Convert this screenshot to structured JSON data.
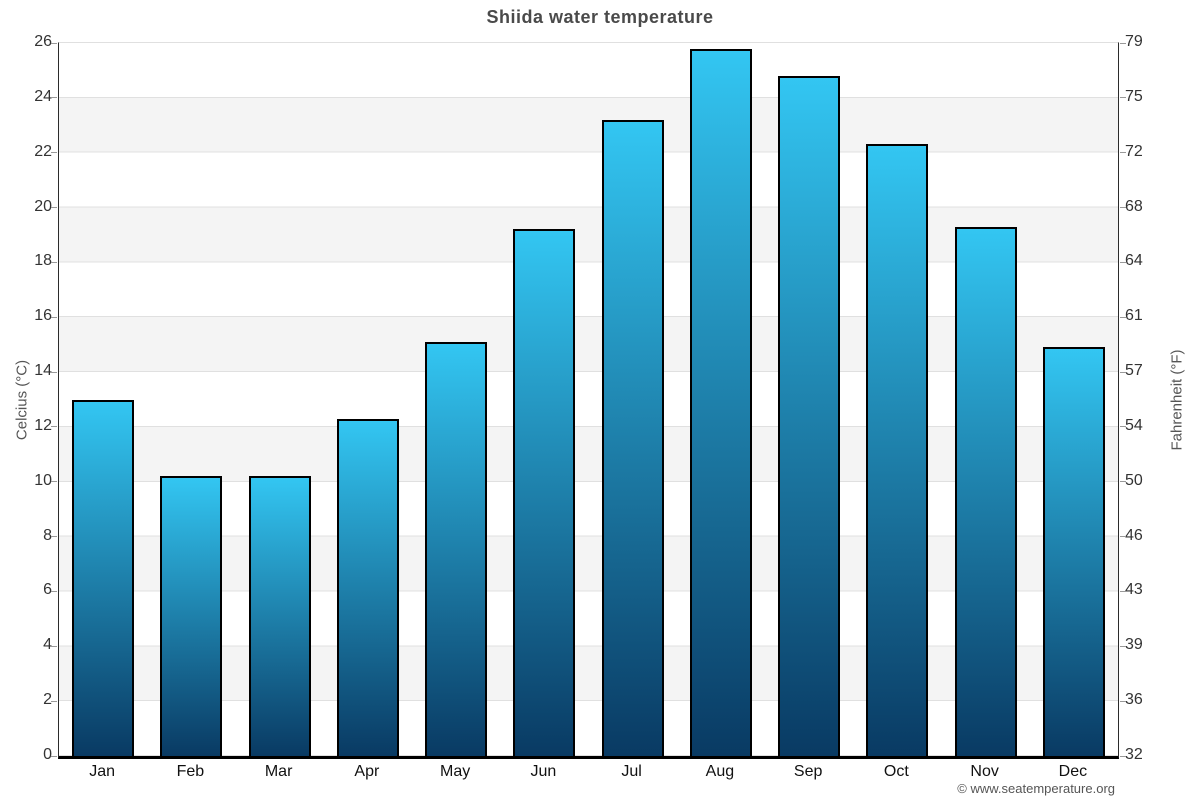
{
  "title": "Shiida water temperature",
  "footer": "© www.seatemperature.org",
  "axes": {
    "left_label": "Celcius (°C)",
    "right_label": "Fahrenheit (°F)",
    "celsius_ticks": [
      0,
      2,
      4,
      6,
      8,
      10,
      12,
      14,
      16,
      18,
      20,
      22,
      24,
      26
    ],
    "fahrenheit_ticks": [
      32,
      36,
      39,
      43,
      46,
      50,
      54,
      57,
      61,
      64,
      68,
      72,
      75,
      79
    ]
  },
  "chart_data": {
    "type": "bar",
    "title": "Shiida water temperature",
    "categories": [
      "Jan",
      "Feb",
      "Mar",
      "Apr",
      "May",
      "Jun",
      "Jul",
      "Aug",
      "Sep",
      "Oct",
      "Nov",
      "Dec"
    ],
    "values": [
      13.0,
      10.2,
      10.2,
      12.3,
      15.1,
      19.2,
      23.2,
      25.8,
      24.8,
      22.3,
      19.3,
      14.9
    ],
    "unit": "°C",
    "xlabel": "",
    "ylabel_left": "Celcius (°C)",
    "ylabel_right": "Fahrenheit (°F)",
    "ylim": [
      0,
      26
    ],
    "grid": "horizontal-bands-every-2C",
    "legend": "none",
    "colors": {
      "bar_gradient_top": "#33c6f2",
      "bar_gradient_bottom": "#093a63",
      "bar_border": "#000000",
      "band_gray": "#f4f4f4",
      "gridline": "#e0e0e0",
      "title_text": "#4a4a4a",
      "tick_text": "#333333"
    }
  }
}
